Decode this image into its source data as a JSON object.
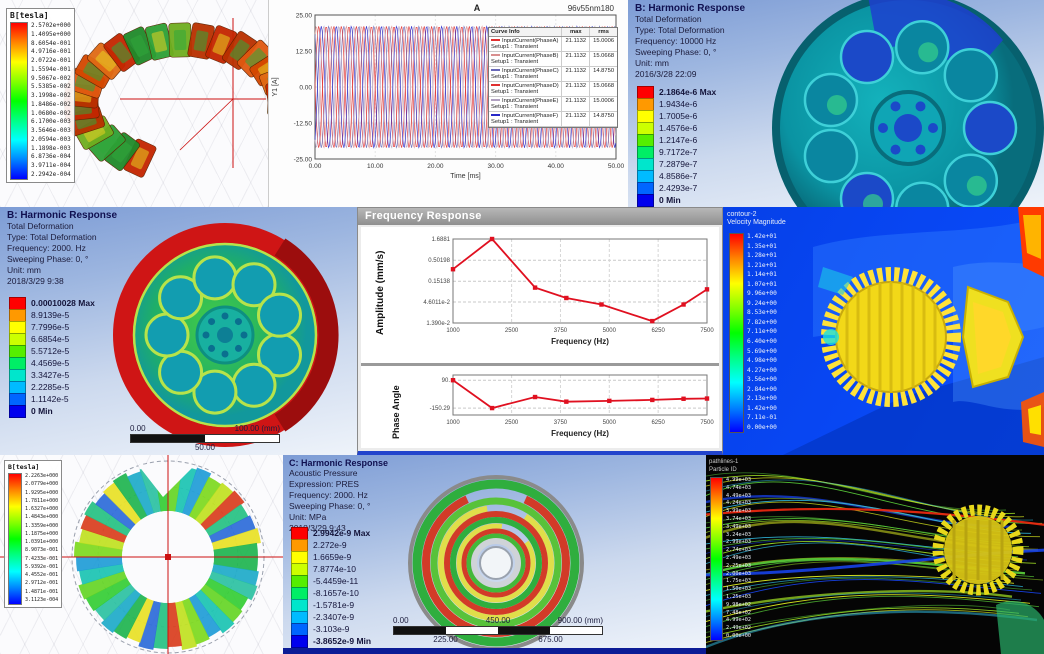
{
  "torus_panel": {
    "legend_title": "B[tesla]",
    "values": [
      "2.5702e+000",
      "1.4095e+000",
      "8.6054e-001",
      "4.9716e-001",
      "2.0722e-001",
      "1.5594e-001",
      "9.5067e-002",
      "5.5385e-002",
      "3.1998e-002",
      "1.8486e-002",
      "1.0680e-002",
      "6.1700e-003",
      "3.5646e-003",
      "2.0594e-003",
      "1.1898e-003",
      "6.8736e-004",
      "3.9711e-004",
      "2.2942e-004"
    ]
  },
  "harmonic_b1": {
    "title": "B: Harmonic Response",
    "lines": [
      "Total Deformation",
      "Type: Total Deformation",
      "Frequency: 10000 Hz",
      "Sweeping Phase: 0, °",
      "Unit: mm",
      "2016/3/28 22:09"
    ],
    "legend": [
      "2.1864e-6 Max",
      "1.9434e-6",
      "1.7005e-6",
      "1.4576e-6",
      "1.2147e-6",
      "9.7172e-7",
      "7.2879e-7",
      "4.8586e-7",
      "2.4293e-7",
      "0 Min"
    ]
  },
  "harmonic_b2": {
    "title": "B: Harmonic Response",
    "lines": [
      "Total Deformation",
      "Type: Total Deformation",
      "Frequency: 2000. Hz",
      "Sweeping Phase: 0, °",
      "Unit: mm",
      "2018/3/29 9:38"
    ],
    "legend": [
      "0.00010028 Max",
      "8.9139e-5",
      "7.7996e-5",
      "6.6854e-5",
      "5.5712e-5",
      "4.4569e-5",
      "3.3427e-5",
      "2.2285e-5",
      "1.1142e-5",
      "0 Min"
    ],
    "ruler": {
      "top_left": "0.00",
      "top_right": "100.00 (mm)",
      "bottom_center": "50.00"
    }
  },
  "freq_window": {
    "title": "Frequency Response"
  },
  "cfd": {
    "legend_title_1": "contour-2",
    "legend_title_2": "Velocity Magnitude",
    "values": [
      "1.42e+01",
      "1.35e+01",
      "1.28e+01",
      "1.21e+01",
      "1.14e+01",
      "1.07e+01",
      "9.96e+00",
      "9.24e+00",
      "8.53e+00",
      "7.82e+00",
      "7.11e+00",
      "6.40e+00",
      "5.69e+00",
      "4.98e+00",
      "4.27e+00",
      "3.56e+00",
      "2.84e+00",
      "2.13e+00",
      "1.42e+00",
      "7.11e-01",
      "0.00e+00"
    ]
  },
  "rotor_panel": {
    "legend_title": "B[tesla]",
    "values": [
      "2.2263e+000",
      "2.0779e+000",
      "1.9295e+000",
      "1.7811e+000",
      "1.6327e+000",
      "1.4843e+000",
      "1.3359e+000",
      "1.1875e+000",
      "1.0391e+000",
      "8.9073e-001",
      "7.4233e-001",
      "5.9392e-001",
      "4.4552e-001",
      "2.9712e-001",
      "1.4871e-001",
      "3.1123e-004"
    ]
  },
  "acoustic": {
    "title": "C: Harmonic Response",
    "lines": [
      "Acoustic Pressure",
      "Expression: PRES",
      "Frequency: 2000. Hz",
      "Sweeping Phase: 0, °",
      "Unit: MPa",
      "2018/3/29 9:43"
    ],
    "legend": [
      "2.9942e-9 Max",
      "2.272e-9",
      "1.6659e-9",
      "7.8774e-10",
      "-5.4459e-11",
      "-8.1657e-10",
      "-1.5781e-9",
      "-2.3407e-9",
      "-3.103e-9",
      "-3.8652e-9 Min"
    ],
    "ruler": {
      "top_left": "0.00",
      "top_center": "450.00",
      "top_right": "900.00 (mm)",
      "bottom_left": "225.00",
      "bottom_right": "675.00"
    }
  },
  "streamlines": {
    "legend_title_1": "pathlines-1",
    "legend_title_2": "Particle ID",
    "values": [
      "4.99e+03",
      "4.74e+03",
      "4.49e+03",
      "4.24e+03",
      "3.99e+03",
      "3.74e+03",
      "3.49e+03",
      "3.24e+03",
      "2.99e+03",
      "2.74e+03",
      "2.49e+03",
      "2.25e+03",
      "2.00e+03",
      "1.75e+03",
      "1.50e+03",
      "1.25e+03",
      "9.98e+02",
      "7.48e+02",
      "4.99e+02",
      "2.49e+02",
      "0.00e+00"
    ]
  },
  "colors": {
    "ansys_legend": [
      "#ff0000",
      "#ff9900",
      "#ffff00",
      "#ccff00",
      "#55ee00",
      "#00ee66",
      "#00e6cc",
      "#00bbff",
      "#0066ff",
      "#0000ee"
    ],
    "accent_red": "#e01020"
  },
  "chart_data": [
    {
      "type": "line",
      "title": "A",
      "subtitle": "96v55nm180",
      "xlabel": "Time [ms]",
      "ylabel": "Y1 [A]",
      "xlim": [
        0,
        50
      ],
      "ylim": [
        -25,
        25
      ],
      "xticks": [
        "0.00",
        "10.00",
        "20.00",
        "30.00",
        "40.00",
        "50.00"
      ],
      "yticks": [
        "25.00",
        "12.50",
        "0.00",
        "-12.50",
        "-25.00"
      ],
      "waveform": {
        "kind": "sine",
        "amplitude": 21.1132,
        "period_ms": 2.5,
        "phases_deg": [
          0,
          60,
          120,
          180,
          240,
          300
        ]
      },
      "legend_headers": [
        "Curve Info",
        "max",
        "rms"
      ],
      "series": [
        {
          "name": "InputCurrent(PhaseA)",
          "setup": "Setup1 : Transient",
          "max": "21.1132",
          "rms": "15.0006",
          "color": "#e03030"
        },
        {
          "name": "InputCurrent(PhaseB)",
          "setup": "Setup1 : Transient",
          "max": "21.1132",
          "rms": "15.0668",
          "color": "#d98f8f"
        },
        {
          "name": "InputCurrent(PhaseC)",
          "setup": "Setup1 : Transient",
          "max": "21.1132",
          "rms": "14.8750",
          "color": "#6868b8"
        },
        {
          "name": "InputCurrent(PhaseD)",
          "setup": "Setup1 : Transient",
          "max": "21.1132",
          "rms": "15.0668",
          "color": "#e03030"
        },
        {
          "name": "InputCurrent(PhaseE)",
          "setup": "Setup1 : Transient",
          "max": "21.1132",
          "rms": "15.0006",
          "color": "#b0a0c0"
        },
        {
          "name": "InputCurrent(PhaseF)",
          "setup": "Setup1 : Transient",
          "max": "21.1132",
          "rms": "14.8750",
          "color": "#2828c8"
        }
      ]
    },
    {
      "type": "line",
      "title": "Frequency Response - Amplitude",
      "xlabel": "Frequency (Hz)",
      "ylabel": "Amplitude (mm/s)",
      "yscale": "log",
      "ytick_labels": [
        "1.6881",
        "0.50198",
        "0.15138",
        "4.6011e-2",
        "1.390e-2"
      ],
      "ytick_values": [
        1.6881,
        0.50198,
        0.15138,
        0.046011,
        0.0139
      ],
      "xticks": [
        1000,
        2500,
        3750,
        5000,
        6250,
        7500
      ],
      "x": [
        1000,
        2000,
        3100,
        3900,
        4800,
        6100,
        6900,
        7500
      ],
      "y": [
        0.3,
        1.6881,
        0.105,
        0.058,
        0.04,
        0.0155,
        0.04,
        0.095
      ],
      "color": "#e01020"
    },
    {
      "type": "line",
      "title": "Frequency Response - Phase",
      "xlabel": "Frequency (Hz)",
      "ylabel": "Phase Angle",
      "ylim": [
        -210,
        135
      ],
      "ytick_labels": [
        "90.",
        "-150.29"
      ],
      "ytick_values": [
        90,
        -150.29
      ],
      "xticks": [
        1000,
        2500,
        3750,
        5000,
        6250,
        7500
      ],
      "x": [
        1000,
        2000,
        3100,
        3900,
        5000,
        6100,
        6900,
        7500
      ],
      "y": [
        90,
        -150.29,
        -55,
        -95,
        -88,
        -80,
        -70,
        -68
      ],
      "color": "#e01020"
    }
  ]
}
